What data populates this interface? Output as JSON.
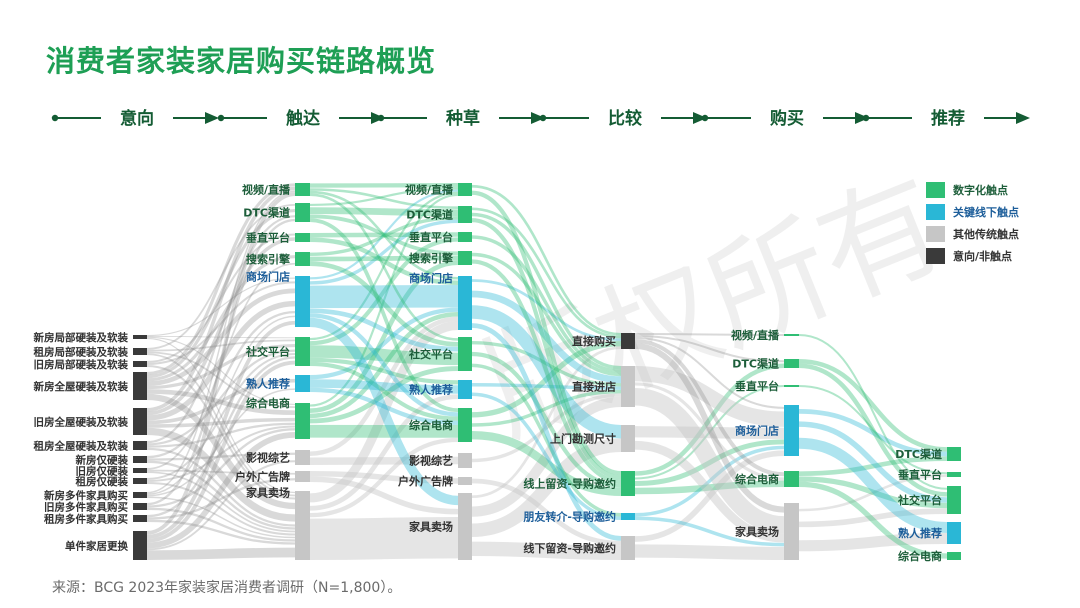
{
  "title": "消费者家装家居购买链路概览",
  "watermark": "版权所有",
  "stages": [
    "意向",
    "触达",
    "种草",
    "比较",
    "购买",
    "推荐"
  ],
  "legend": [
    {
      "label": "数字化触点",
      "color": "#2fbe74"
    },
    {
      "label": "关键线下触点",
      "color": "#2ab7d6"
    },
    {
      "label": "其他传统触点",
      "color": "#c6c6c6"
    },
    {
      "label": "意向/非触点",
      "color": "#3a3a3a"
    }
  ],
  "columns": [
    {
      "stage": "意向",
      "nodes": [
        {
          "id": "i1",
          "label": "新房局部硬装及软装",
          "cat": 3
        },
        {
          "id": "i2",
          "label": "租房局部硬装及软装",
          "cat": 3
        },
        {
          "id": "i3",
          "label": "旧房局部硬装及软装",
          "cat": 3
        },
        {
          "id": "i4",
          "label": "新房全屋硬装及软装",
          "cat": 3
        },
        {
          "id": "i5",
          "label": "旧房全屋硬装及软装",
          "cat": 3
        },
        {
          "id": "i6",
          "label": "租房全屋硬装及软装",
          "cat": 3
        },
        {
          "id": "i7",
          "label": "新房仅硬装",
          "cat": 3
        },
        {
          "id": "i8",
          "label": "旧房仅硬装",
          "cat": 3
        },
        {
          "id": "i9",
          "label": "租房仅硬装",
          "cat": 3
        },
        {
          "id": "i10",
          "label": "新房多件家具购买",
          "cat": 3
        },
        {
          "id": "i11",
          "label": "旧房多件家具购买",
          "cat": 3
        },
        {
          "id": "i12",
          "label": "租房多件家具购买",
          "cat": 3
        },
        {
          "id": "i13",
          "label": "单件家居更换",
          "cat": 3
        }
      ]
    },
    {
      "stage": "触达",
      "nodes": [
        {
          "id": "t1",
          "label": "视频/直播",
          "cat": 0
        },
        {
          "id": "t2",
          "label": "DTC渠道",
          "cat": 0
        },
        {
          "id": "t3",
          "label": "垂直平台",
          "cat": 0
        },
        {
          "id": "t4",
          "label": "搜索引擎",
          "cat": 0
        },
        {
          "id": "t5",
          "label": "商场门店",
          "cat": 1
        },
        {
          "id": "t6",
          "label": "社交平台",
          "cat": 0
        },
        {
          "id": "t7",
          "label": "熟人推荐",
          "cat": 1
        },
        {
          "id": "t8",
          "label": "综合电商",
          "cat": 0
        },
        {
          "id": "t9",
          "label": "影视综艺",
          "cat": 2
        },
        {
          "id": "t10",
          "label": "户外广告牌",
          "cat": 2
        },
        {
          "id": "t11",
          "label": "家具卖场",
          "cat": 2
        }
      ]
    },
    {
      "stage": "种草",
      "nodes": [
        {
          "id": "g1",
          "label": "视频/直播",
          "cat": 0
        },
        {
          "id": "g2",
          "label": "DTC渠道",
          "cat": 0
        },
        {
          "id": "g3",
          "label": "垂直平台",
          "cat": 0
        },
        {
          "id": "g4",
          "label": "搜索引擎",
          "cat": 0
        },
        {
          "id": "g5",
          "label": "商场门店",
          "cat": 1
        },
        {
          "id": "g6",
          "label": "社交平台",
          "cat": 0
        },
        {
          "id": "g7",
          "label": "熟人推荐",
          "cat": 1
        },
        {
          "id": "g8",
          "label": "综合电商",
          "cat": 0
        },
        {
          "id": "g9",
          "label": "影视综艺",
          "cat": 2
        },
        {
          "id": "g10",
          "label": "户外广告牌",
          "cat": 2
        },
        {
          "id": "g11",
          "label": "家具卖场",
          "cat": 2
        }
      ]
    },
    {
      "stage": "比较",
      "nodes": [
        {
          "id": "c1",
          "label": "直接购买",
          "cat": 3
        },
        {
          "id": "c2",
          "label": "直接进店",
          "cat": 2
        },
        {
          "id": "c3",
          "label": "上门勘测尺寸",
          "cat": 2
        },
        {
          "id": "c4",
          "label": "线上留资-导购邀约",
          "cat": 0
        },
        {
          "id": "c5",
          "label": "朋友转介-导购邀约",
          "cat": 1
        },
        {
          "id": "c6",
          "label": "线下留资-导购邀约",
          "cat": 2
        }
      ]
    },
    {
      "stage": "购买",
      "nodes": [
        {
          "id": "p1",
          "label": "视频/直播",
          "cat": 0
        },
        {
          "id": "p2",
          "label": "DTC渠道",
          "cat": 0
        },
        {
          "id": "p3",
          "label": "垂直平台",
          "cat": 0
        },
        {
          "id": "p4",
          "label": "商场门店",
          "cat": 1
        },
        {
          "id": "p5",
          "label": "综合电商",
          "cat": 0
        },
        {
          "id": "p6",
          "label": "家具卖场",
          "cat": 2
        }
      ]
    },
    {
      "stage": "推荐",
      "nodes": [
        {
          "id": "r1",
          "label": "DTC渠道",
          "cat": 0
        },
        {
          "id": "r2",
          "label": "垂直平台",
          "cat": 0
        },
        {
          "id": "r3",
          "label": "社交平台",
          "cat": 0
        },
        {
          "id": "r4",
          "label": "熟人推荐",
          "cat": 1
        },
        {
          "id": "r5",
          "label": "综合电商",
          "cat": 0
        }
      ]
    }
  ],
  "source": "来源：BCG 2023年家装家居消费者调研（N=1,800）。"
}
